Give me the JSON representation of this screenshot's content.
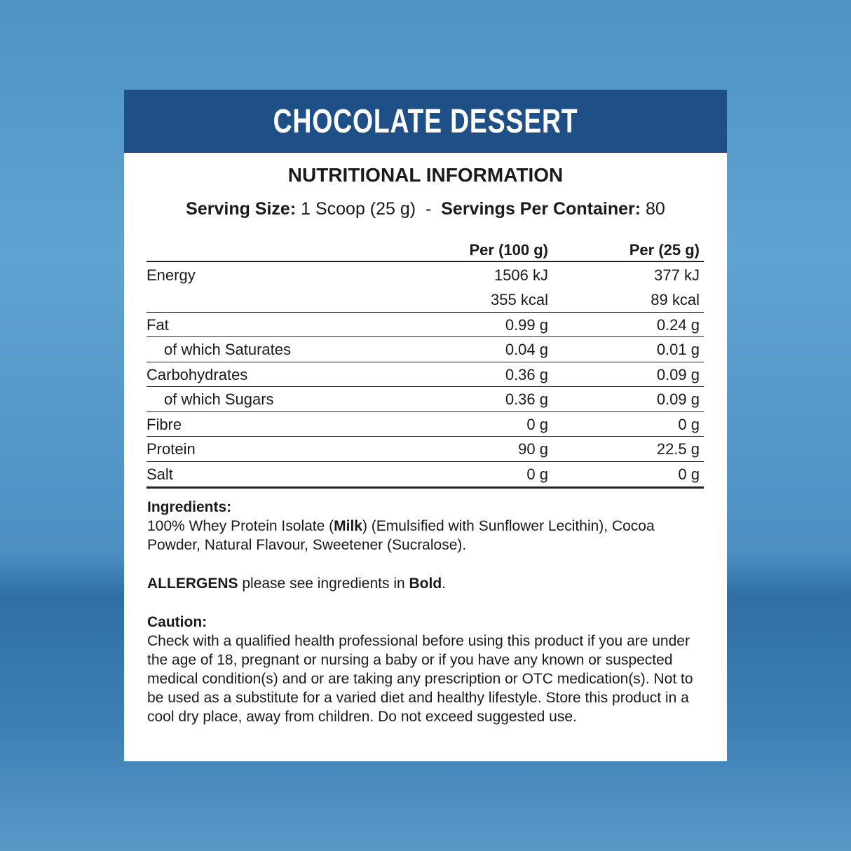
{
  "header": {
    "title": "CHOCOLATE DESSERT"
  },
  "heading": "NUTRITIONAL INFORMATION",
  "serving": {
    "size_label": "Serving Size:",
    "size_value": "1 Scoop (25 g)",
    "separator": "-",
    "per_container_label": "Servings Per Container:",
    "per_container_value": "80"
  },
  "table": {
    "columns": [
      "Per (100 g)",
      "Per (25 g)"
    ],
    "rows": [
      {
        "label": "Energy",
        "values": [
          "1506 kJ",
          "377 kJ"
        ]
      },
      {
        "values": [
          "355 kcal",
          "89 kcal"
        ]
      },
      {
        "label": "Fat",
        "values": [
          "0.99 g",
          "0.24 g"
        ]
      },
      {
        "label": "of which Saturates",
        "indent": true,
        "values": [
          "0.04 g",
          "0.01 g"
        ]
      },
      {
        "label": "Carbohydrates",
        "values": [
          "0.36 g",
          "0.09 g"
        ]
      },
      {
        "label": "of which Sugars",
        "indent": true,
        "values": [
          "0.36 g",
          "0.09 g"
        ]
      },
      {
        "label": "Fibre",
        "values": [
          "0 g",
          "0 g"
        ]
      },
      {
        "label": "Protein",
        "values": [
          "90 g",
          "22.5 g"
        ]
      },
      {
        "label": "Salt",
        "values": [
          "0 g",
          "0 g"
        ]
      }
    ]
  },
  "ingredients": {
    "heading": "Ingredients:",
    "runs": [
      {
        "text": "100% Whey Protein Isolate ("
      },
      {
        "text": "Milk",
        "bold": true
      },
      {
        "text": ") (Emulsified with Sunflower Lecithin), Cocoa Powder, Natural Flavour, Sweetener (Sucralose)."
      }
    ]
  },
  "allergens": {
    "runs": [
      {
        "text": "ALLERGENS",
        "bold": true
      },
      {
        "text": " please see ingredients in "
      },
      {
        "text": "Bold",
        "bold": true
      },
      {
        "text": "."
      }
    ]
  },
  "caution": {
    "heading": "Caution:",
    "text": "Check with a qualified health professional before using this product if you are under the age of 18, pregnant or nursing a baby or if you have any known or suspected medical condition(s) and or are taking any prescription or OTC medication(s). Not to be used as a substitute for a varied diet and healthy lifestyle. Store this product in a cool dry place, away from children. Do not exceed suggested use."
  }
}
